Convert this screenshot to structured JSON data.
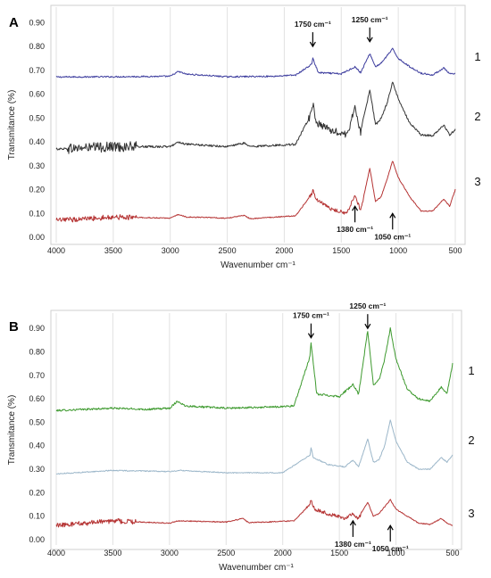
{
  "chart_data": [
    {
      "type": "line",
      "panel_label": "A",
      "xlabel": "Wavenumber cm⁻¹",
      "ylabel": "Transmitance (%)",
      "xlim": [
        4000,
        500
      ],
      "ylim": [
        0.0,
        0.95
      ],
      "x_ticks": [
        4000,
        3500,
        3000,
        2500,
        2000,
        1500,
        1000,
        500
      ],
      "x_tick_labels": [
        "4000",
        "3500",
        "3000",
        "2500",
        "2000",
        "1500",
        "1000",
        "500"
      ],
      "y_ticks": [
        0.0,
        0.1,
        0.2,
        0.3,
        0.4,
        0.5,
        0.6,
        0.7,
        0.8,
        0.9
      ],
      "y_tick_labels": [
        "0.00",
        "0.10",
        "0.20",
        "0.30",
        "0.40",
        "0.50",
        "0.60",
        "0.70",
        "0.80",
        "0.90"
      ],
      "grid": "vertical",
      "series": [
        {
          "name": "1",
          "color": "#3d3d9e",
          "baseline": 0.67,
          "noise": 0.003,
          "points": [
            [
              4000,
              0.672
            ],
            [
              3500,
              0.673
            ],
            [
              3000,
              0.675
            ],
            [
              2930,
              0.695
            ],
            [
              2860,
              0.684
            ],
            [
              2500,
              0.673
            ],
            [
              2100,
              0.675
            ],
            [
              1900,
              0.68
            ],
            [
              1760,
              0.725
            ],
            [
              1748,
              0.755
            ],
            [
              1735,
              0.73
            ],
            [
              1700,
              0.69
            ],
            [
              1500,
              0.685
            ],
            [
              1380,
              0.715
            ],
            [
              1330,
              0.69
            ],
            [
              1250,
              0.77
            ],
            [
              1200,
              0.715
            ],
            [
              1150,
              0.73
            ],
            [
              1100,
              0.76
            ],
            [
              1050,
              0.79
            ],
            [
              1000,
              0.75
            ],
            [
              900,
              0.715
            ],
            [
              800,
              0.688
            ],
            [
              700,
              0.68
            ],
            [
              600,
              0.71
            ],
            [
              550,
              0.685
            ],
            [
              500,
              0.685
            ]
          ]
        },
        {
          "name": "2",
          "color": "#333333",
          "baseline": 0.38,
          "noise": 0.012,
          "noise_range": [
            3900,
            3300
          ],
          "points": [
            [
              4000,
              0.37
            ],
            [
              3500,
              0.38
            ],
            [
              3000,
              0.38
            ],
            [
              2930,
              0.4
            ],
            [
              2860,
              0.39
            ],
            [
              2500,
              0.38
            ],
            [
              2350,
              0.395
            ],
            [
              2300,
              0.38
            ],
            [
              1900,
              0.39
            ],
            [
              1760,
              0.52
            ],
            [
              1748,
              0.56
            ],
            [
              1720,
              0.48
            ],
            [
              1600,
              0.45
            ],
            [
              1450,
              0.43
            ],
            [
              1380,
              0.54
            ],
            [
              1330,
              0.44
            ],
            [
              1250,
              0.62
            ],
            [
              1200,
              0.47
            ],
            [
              1150,
              0.5
            ],
            [
              1100,
              0.56
            ],
            [
              1050,
              0.65
            ],
            [
              1000,
              0.58
            ],
            [
              900,
              0.48
            ],
            [
              800,
              0.43
            ],
            [
              700,
              0.425
            ],
            [
              600,
              0.47
            ],
            [
              550,
              0.43
            ],
            [
              500,
              0.45
            ]
          ]
        },
        {
          "name": "3",
          "color": "#b53333",
          "baseline": 0.07,
          "noise": 0.006,
          "noise_range": [
            4000,
            3300
          ],
          "points": [
            [
              4000,
              0.07
            ],
            [
              3500,
              0.085
            ],
            [
              3000,
              0.08
            ],
            [
              2930,
              0.095
            ],
            [
              2860,
              0.085
            ],
            [
              2500,
              0.08
            ],
            [
              2350,
              0.092
            ],
            [
              2300,
              0.078
            ],
            [
              1900,
              0.09
            ],
            [
              1760,
              0.18
            ],
            [
              1748,
              0.2
            ],
            [
              1720,
              0.16
            ],
            [
              1600,
              0.12
            ],
            [
              1450,
              0.1
            ],
            [
              1380,
              0.18
            ],
            [
              1330,
              0.11
            ],
            [
              1250,
              0.29
            ],
            [
              1200,
              0.15
            ],
            [
              1150,
              0.17
            ],
            [
              1100,
              0.24
            ],
            [
              1050,
              0.32
            ],
            [
              1000,
              0.25
            ],
            [
              900,
              0.17
            ],
            [
              800,
              0.11
            ],
            [
              700,
              0.11
            ],
            [
              600,
              0.16
            ],
            [
              550,
              0.13
            ],
            [
              500,
              0.2
            ]
          ]
        }
      ],
      "annotations": [
        {
          "text": "1750 cm⁻¹",
          "x": 1750,
          "direction": "down",
          "y": 0.8
        },
        {
          "text": "1250 cm⁻¹",
          "x": 1250,
          "direction": "down",
          "y": 0.82
        },
        {
          "text": "1380 cm⁻¹",
          "x": 1380,
          "direction": "up",
          "y": 0.13
        },
        {
          "text": "1050 cm⁻¹",
          "x": 1050,
          "direction": "up",
          "y": 0.1
        }
      ]
    },
    {
      "type": "line",
      "panel_label": "B",
      "xlabel": "Wavenumber cm⁻¹",
      "ylabel": "Transmitance (%)",
      "xlim": [
        4000,
        500
      ],
      "ylim": [
        0.0,
        0.95
      ],
      "x_ticks": [
        4000,
        3500,
        3000,
        2500,
        2000,
        1500,
        1000,
        500
      ],
      "x_tick_labels": [
        "4000",
        "3500",
        "3000",
        "2500",
        "2000",
        "1500",
        "1000",
        "500"
      ],
      "y_ticks": [
        0.0,
        0.1,
        0.2,
        0.3,
        0.4,
        0.5,
        0.6,
        0.7,
        0.8,
        0.9
      ],
      "y_tick_labels": [
        "0.00",
        "0.10",
        "0.20",
        "0.30",
        "0.40",
        "0.50",
        "0.60",
        "0.70",
        "0.80",
        "0.90"
      ],
      "grid": "vertical",
      "series": [
        {
          "name": "1",
          "color": "#3e9a2f",
          "baseline": 0.56,
          "noise": 0.004,
          "points": [
            [
              4000,
              0.55
            ],
            [
              3500,
              0.56
            ],
            [
              3200,
              0.555
            ],
            [
              3000,
              0.56
            ],
            [
              2930,
              0.59
            ],
            [
              2860,
              0.57
            ],
            [
              2500,
              0.56
            ],
            [
              2100,
              0.565
            ],
            [
              1900,
              0.57
            ],
            [
              1760,
              0.78
            ],
            [
              1750,
              0.84
            ],
            [
              1730,
              0.75
            ],
            [
              1700,
              0.62
            ],
            [
              1500,
              0.61
            ],
            [
              1380,
              0.66
            ],
            [
              1330,
              0.62
            ],
            [
              1250,
              0.89
            ],
            [
              1200,
              0.66
            ],
            [
              1150,
              0.68
            ],
            [
              1100,
              0.77
            ],
            [
              1050,
              0.9
            ],
            [
              1000,
              0.77
            ],
            [
              900,
              0.64
            ],
            [
              800,
              0.6
            ],
            [
              700,
              0.59
            ],
            [
              600,
              0.65
            ],
            [
              550,
              0.62
            ],
            [
              500,
              0.75
            ]
          ]
        },
        {
          "name": "2",
          "color": "#9bb6c9",
          "baseline": 0.28,
          "noise": 0.002,
          "points": [
            [
              4000,
              0.28
            ],
            [
              3500,
              0.295
            ],
            [
              3000,
              0.29
            ],
            [
              2900,
              0.295
            ],
            [
              2500,
              0.285
            ],
            [
              2000,
              0.285
            ],
            [
              1760,
              0.36
            ],
            [
              1750,
              0.39
            ],
            [
              1730,
              0.35
            ],
            [
              1600,
              0.32
            ],
            [
              1450,
              0.31
            ],
            [
              1380,
              0.34
            ],
            [
              1330,
              0.31
            ],
            [
              1250,
              0.43
            ],
            [
              1200,
              0.33
            ],
            [
              1150,
              0.34
            ],
            [
              1100,
              0.4
            ],
            [
              1050,
              0.51
            ],
            [
              1000,
              0.42
            ],
            [
              900,
              0.33
            ],
            [
              800,
              0.3
            ],
            [
              700,
              0.3
            ],
            [
              600,
              0.35
            ],
            [
              550,
              0.33
            ],
            [
              500,
              0.36
            ]
          ]
        },
        {
          "name": "3",
          "color": "#b53333",
          "baseline": 0.07,
          "noise": 0.006,
          "noise_range": [
            4000,
            3300
          ],
          "points": [
            [
              4000,
              0.06
            ],
            [
              3500,
              0.08
            ],
            [
              3000,
              0.07
            ],
            [
              2930,
              0.08
            ],
            [
              2500,
              0.075
            ],
            [
              2350,
              0.09
            ],
            [
              2300,
              0.072
            ],
            [
              1900,
              0.08
            ],
            [
              1760,
              0.15
            ],
            [
              1750,
              0.17
            ],
            [
              1720,
              0.13
            ],
            [
              1600,
              0.11
            ],
            [
              1450,
              0.09
            ],
            [
              1380,
              0.11
            ],
            [
              1330,
              0.09
            ],
            [
              1250,
              0.16
            ],
            [
              1200,
              0.1
            ],
            [
              1150,
              0.11
            ],
            [
              1100,
              0.14
            ],
            [
              1050,
              0.17
            ],
            [
              1000,
              0.13
            ],
            [
              900,
              0.1
            ],
            [
              800,
              0.07
            ],
            [
              700,
              0.065
            ],
            [
              600,
              0.09
            ],
            [
              550,
              0.07
            ],
            [
              500,
              0.06
            ]
          ]
        }
      ],
      "annotations": [
        {
          "text": "1750 cm⁻¹",
          "x": 1750,
          "direction": "down",
          "y": 0.86
        },
        {
          "text": "1250 cm⁻¹",
          "x": 1250,
          "direction": "down",
          "y": 0.9
        },
        {
          "text": "1380 cm⁻¹",
          "x": 1380,
          "direction": "up",
          "y": 0.08
        },
        {
          "text": "1050 cm⁻¹",
          "x": 1050,
          "direction": "up",
          "y": 0.06
        }
      ]
    }
  ]
}
